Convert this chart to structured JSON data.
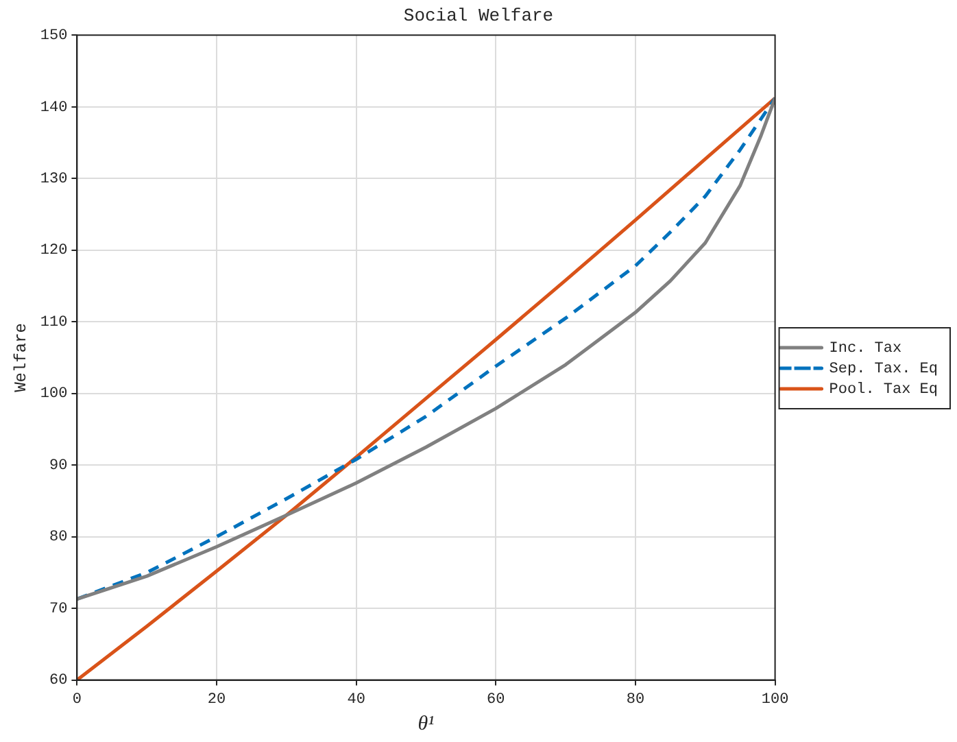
{
  "chart_data": {
    "type": "line",
    "title": "Social Welfare",
    "xlabel": "θ¹",
    "ylabel": "Welfare",
    "xlim": [
      0,
      100
    ],
    "xticks": [
      0,
      20,
      40,
      60,
      80,
      100
    ],
    "ylim": [
      60,
      150
    ],
    "yticks": [
      60,
      70,
      80,
      90,
      100,
      110,
      120,
      130,
      140,
      150
    ],
    "grid": true,
    "legend": "right",
    "marker": "none",
    "series": [
      {
        "name": "Inc. Tax",
        "color": "#808080",
        "line_style": "solid",
        "x": [
          0,
          10,
          20,
          30,
          40,
          50,
          60,
          70,
          80,
          85,
          90,
          95,
          98,
          100
        ],
        "values": [
          71.3,
          74.5,
          78.6,
          83,
          87.5,
          92.5,
          97.9,
          104,
          111.3,
          115.7,
          121,
          129,
          136,
          141.2
        ]
      },
      {
        "name": "Sep. Tax. Eq",
        "color": "#0072bd",
        "line_style": "dashed",
        "x": [
          0,
          10,
          20,
          30,
          40,
          50,
          60,
          70,
          80,
          85,
          90,
          95,
          100
        ],
        "values": [
          71.3,
          75,
          80,
          85.3,
          90.8,
          96.8,
          103.8,
          110.5,
          117.8,
          122.5,
          127.5,
          134,
          141.2
        ]
      },
      {
        "name": "Pool. Tax Eq",
        "color": "#d95319",
        "line_style": "solid",
        "x": [
          0,
          10,
          20,
          30,
          40,
          50,
          60,
          70,
          80,
          90,
          100
        ],
        "values": [
          60,
          67.5,
          75.2,
          83,
          91.1,
          99.3,
          107.5,
          115.8,
          124.2,
          132.7,
          141.2
        ]
      }
    ]
  }
}
